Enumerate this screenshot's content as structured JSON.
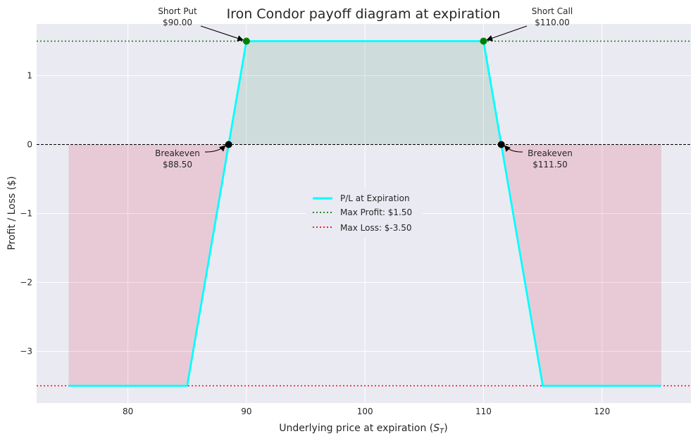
{
  "chart_data": {
    "type": "line",
    "title": "Iron Condor payoff diagram at expiration",
    "xlabel": "Underlying price at expiration (",
    "xlabel_math": "S",
    "xlabel_sub": "T",
    "xlabel_end": ")",
    "ylabel": "Profit / Loss ($)",
    "xlim": [
      72.3,
      127.5
    ],
    "ylim": [
      -3.75,
      1.75
    ],
    "x_ticks": [
      80,
      90,
      100,
      110,
      120
    ],
    "y_ticks": [
      -3,
      -2,
      -1,
      0,
      1
    ],
    "y_tick_labels": [
      "−3",
      "−2",
      "−1",
      "0",
      "1"
    ],
    "grid": true,
    "legend_position": "center",
    "series": [
      {
        "name": "P/L at Expiration",
        "color": "#00ffff",
        "x": [
          75,
          85,
          90,
          110,
          115,
          125
        ],
        "y": [
          -3.5,
          -3.5,
          1.5,
          1.5,
          -3.5,
          -3.5
        ]
      }
    ],
    "reference_lines": [
      {
        "name": "Max Profit: $1.50",
        "y": 1.5,
        "color": "#008000",
        "style": "dotted"
      },
      {
        "name": "Max Loss: $-3.50",
        "y": -3.5,
        "color": "#ff0000",
        "style": "dotted"
      },
      {
        "name": "",
        "y": 0,
        "color": "#000000",
        "style": "dashed"
      }
    ],
    "fills": {
      "profit_color": "#2e8b57",
      "loss_color": "#dc143c"
    },
    "annotations": [
      {
        "id": "short_put",
        "x": 90,
        "y": 1.5,
        "lines": [
          "Short Put",
          "$90.00"
        ],
        "marker_color": "#008000"
      },
      {
        "id": "short_call",
        "x": 110,
        "y": 1.5,
        "lines": [
          "Short Call",
          "$110.00"
        ],
        "marker_color": "#008000"
      },
      {
        "id": "breakeven_low",
        "x": 88.5,
        "y": 0,
        "lines": [
          "Breakeven",
          "$88.50"
        ],
        "marker_color": "#000000"
      },
      {
        "id": "breakeven_high",
        "x": 111.5,
        "y": 0,
        "lines": [
          "Breakeven",
          "$111.50"
        ],
        "marker_color": "#000000"
      }
    ]
  }
}
